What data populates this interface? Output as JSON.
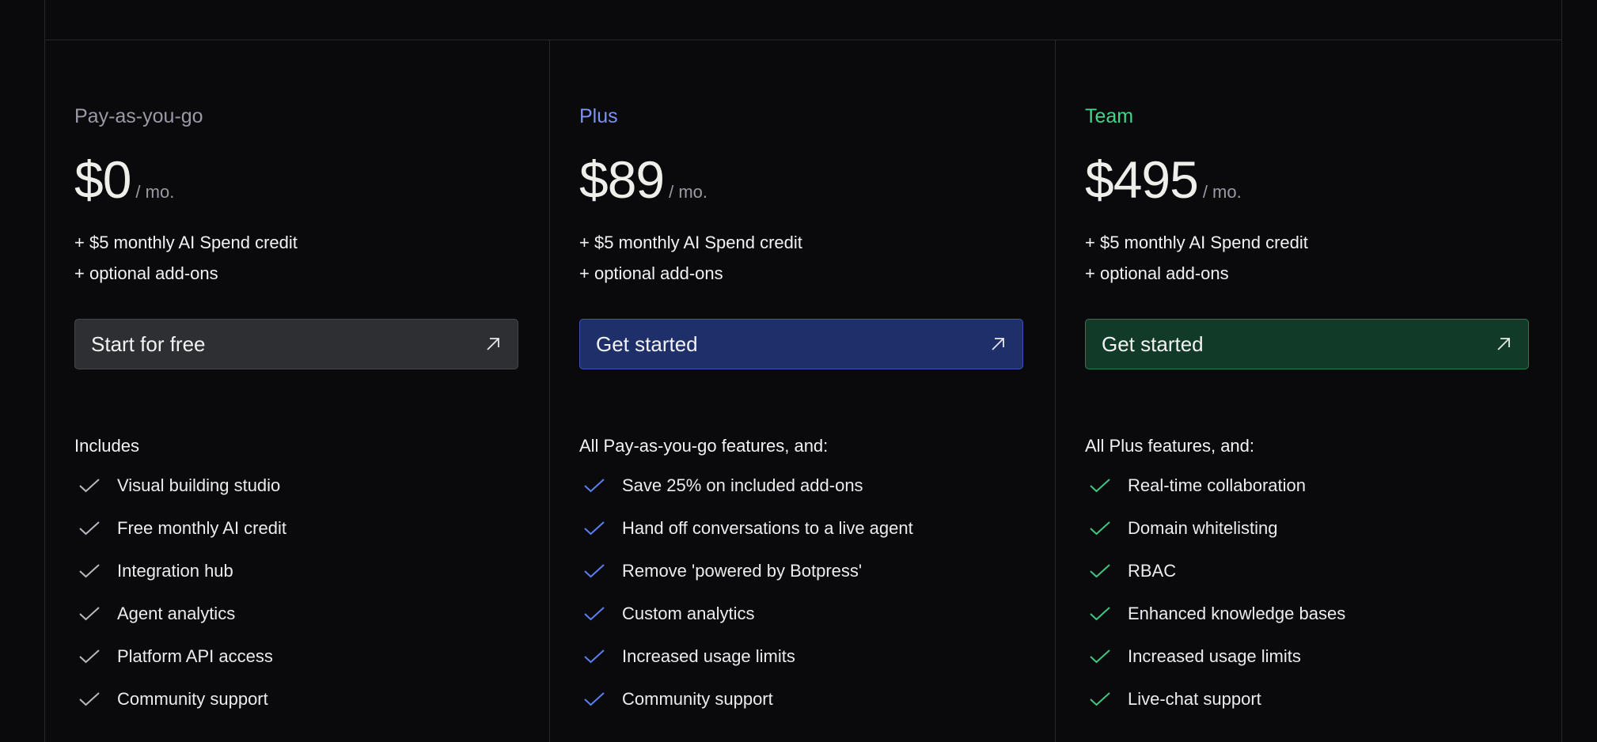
{
  "plans": [
    {
      "name": "Pay-as-you-go",
      "name_color": "#9a9aa6",
      "price": "$0",
      "period": "/ mo.",
      "extras": [
        "+ $5 monthly AI Spend credit",
        "+ optional add-ons"
      ],
      "button": {
        "label": "Start for free",
        "icon": "arrow-up-right-icon",
        "bg": "#2e2f33",
        "border": "#45464c"
      },
      "features_heading": "Includes",
      "check_color": "#b8b8c0",
      "features": [
        "Visual building studio",
        "Free monthly AI credit",
        "Integration hub",
        "Agent analytics",
        "Platform API access",
        "Community support"
      ]
    },
    {
      "name": "Plus",
      "name_color": "#7b93f2",
      "price": "$89",
      "period": "/ mo.",
      "extras": [
        "+ $5 monthly AI Spend credit",
        "+ optional add-ons"
      ],
      "button": {
        "label": "Get started",
        "icon": "arrow-up-right-icon",
        "bg": "#1e2f6a",
        "border": "#3a55b8"
      },
      "features_heading": "All Pay-as-you-go features, and:",
      "check_color": "#5b7ff0",
      "features": [
        "Save 25% on included add-ons",
        "Hand off conversations to a live agent",
        "Remove 'powered by Botpress'",
        "Custom analytics",
        "Increased usage limits",
        "Community support"
      ]
    },
    {
      "name": "Team",
      "name_color": "#3fd68a",
      "price": "$495",
      "period": "/ mo.",
      "extras": [
        "+ $5 monthly AI Spend credit",
        "+ optional add-ons"
      ],
      "button": {
        "label": "Get started",
        "icon": "arrow-up-right-icon",
        "bg": "#113a29",
        "border": "#2a7a52"
      },
      "features_heading": "All Plus features, and:",
      "check_color": "#3fc681",
      "features": [
        "Real-time collaboration",
        "Domain whitelisting",
        "RBAC",
        "Enhanced knowledge bases",
        "Increased usage limits",
        "Live-chat support"
      ]
    }
  ]
}
